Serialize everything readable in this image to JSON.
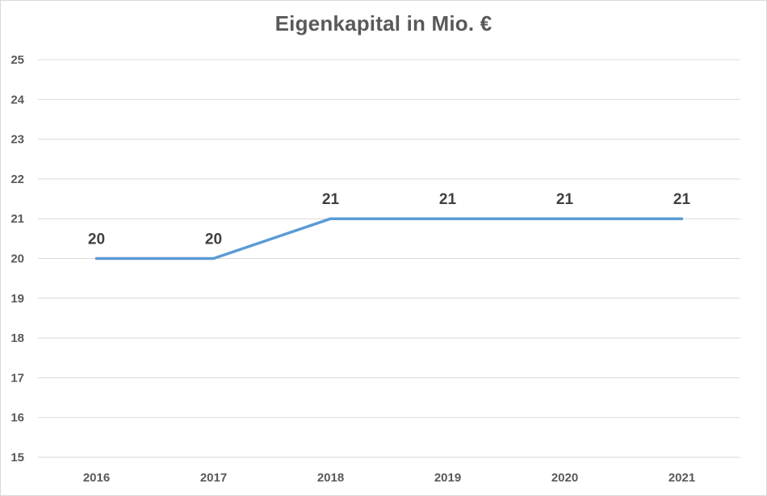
{
  "chart_data": {
    "type": "line",
    "title": "Eigenkapital in Mio. €",
    "xlabel": "",
    "ylabel": "",
    "categories": [
      "2016",
      "2017",
      "2018",
      "2019",
      "2020",
      "2021"
    ],
    "series": [
      {
        "values": [
          20,
          20,
          21,
          21,
          21,
          21
        ],
        "color": "#5b9bd5"
      }
    ],
    "data_labels": [
      "20",
      "20",
      "21",
      "21",
      "21",
      "21"
    ],
    "ylim": [
      15,
      25
    ],
    "yticks": [
      15,
      16,
      17,
      18,
      19,
      20,
      21,
      22,
      23,
      24,
      25
    ],
    "grid": true,
    "legend": "none"
  }
}
